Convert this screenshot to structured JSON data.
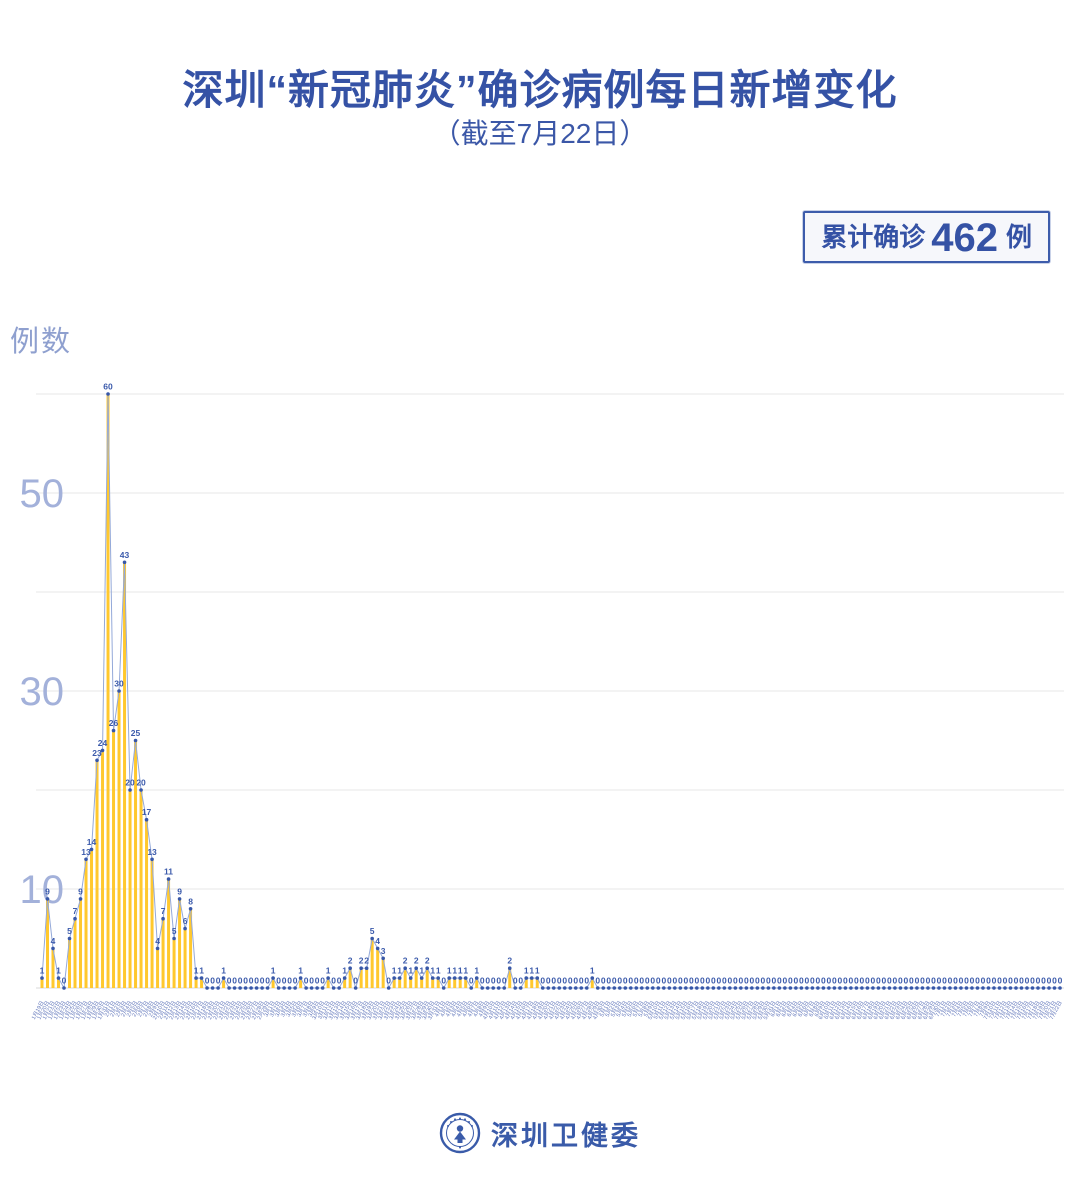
{
  "title": "深圳“新冠肺炎”确诊病例每日新增变化",
  "subtitle": "（截至7月22日）",
  "badge": {
    "prefix": "累计确诊",
    "value": "462",
    "suffix": "例"
  },
  "footer": {
    "org": "深圳卫健委",
    "logo": "shenzhen-health-commission-logo"
  },
  "chart_data": {
    "type": "bar",
    "overlay": "line-with-point-labels",
    "title": "深圳“新冠肺炎”确诊病例每日新增变化",
    "subtitle": "（截至7月22日）",
    "xlabel": "",
    "ylabel": "例数",
    "ylim": [
      0,
      62
    ],
    "y_ticks": [
      10,
      30,
      50
    ],
    "gridlines": [
      10,
      20,
      30,
      40,
      50,
      60
    ],
    "grid": true,
    "legend": "none",
    "cumulative_total": 462,
    "colors": {
      "bar": "#FFC82E",
      "line": "#94a9d9",
      "marker": "#3757a8",
      "point_label": "#3b5aab",
      "x_tick": "#6277bb",
      "y_tick": "#a3b1da",
      "gridline": "#e7e7e7",
      "baseline": "#d8d8d8"
    },
    "categories": [
      "1月19日",
      "1月20日",
      "1月21日",
      "1月22日",
      "1月23日",
      "1月24日",
      "1月25日",
      "1月26日",
      "1月27日",
      "1月28日",
      "1月29日",
      "1月30日",
      "1月31日",
      "2月1日",
      "2月2日",
      "2月3日",
      "2月4日",
      "2月5日",
      "2月6日",
      "2月7日",
      "2月8日",
      "2月9日",
      "2月10日",
      "2月11日",
      "2月12日",
      "2月13日",
      "2月14日",
      "2月15日",
      "2月16日",
      "2月17日",
      "2月18日",
      "2月19日",
      "2月20日",
      "2月21日",
      "2月22日",
      "2月23日",
      "2月24日",
      "2月25日",
      "2月26日",
      "2月27日",
      "2月28日",
      "2月29日",
      "3月1日",
      "3月2日",
      "3月3日",
      "3月4日",
      "3月5日",
      "3月6日",
      "3月7日",
      "3月8日",
      "3月9日",
      "3月10日",
      "3月11日",
      "3月12日",
      "3月13日",
      "3月14日",
      "3月15日",
      "3月16日",
      "3月17日",
      "3月18日",
      "3月19日",
      "3月20日",
      "3月21日",
      "3月22日",
      "3月23日",
      "3月24日",
      "3月25日",
      "3月26日",
      "3月27日",
      "3月28日",
      "3月29日",
      "3月30日",
      "3月31日",
      "4月1日",
      "4月2日",
      "4月3日",
      "4月4日",
      "4月5日",
      "4月6日",
      "4月7日",
      "4月8日",
      "4月9日",
      "4月10日",
      "4月11日",
      "4月12日",
      "4月13日",
      "4月14日",
      "4月15日",
      "4月16日",
      "4月17日",
      "4月18日",
      "4月19日",
      "4月20日",
      "4月21日",
      "4月22日",
      "4月23日",
      "4月24日",
      "4月25日",
      "4月26日",
      "4月27日",
      "4月28日",
      "4月29日",
      "4月30日",
      "5月1日",
      "5月2日",
      "5月3日",
      "5月4日",
      "5月5日",
      "5月6日",
      "5月7日",
      "5月8日",
      "5月9日",
      "5月10日",
      "5月11日",
      "5月12日",
      "5月13日",
      "5月14日",
      "5月15日",
      "5月16日",
      "5月17日",
      "5月18日",
      "5月19日",
      "5月20日",
      "5月21日",
      "5月22日",
      "5月23日",
      "5月24日",
      "5月25日",
      "5月26日",
      "5月27日",
      "5月28日",
      "5月29日",
      "5月30日",
      "5月31日",
      "6月1日",
      "6月2日",
      "6月3日",
      "6月4日",
      "6月5日",
      "6月6日",
      "6月7日",
      "6月8日",
      "6月9日",
      "6月10日",
      "6月11日",
      "6月12日",
      "6月13日",
      "6月14日",
      "6月15日",
      "6月16日",
      "6月17日",
      "6月18日",
      "6月19日",
      "6月20日",
      "6月21日",
      "6月22日",
      "6月23日",
      "6月24日",
      "6月25日",
      "6月26日",
      "6月27日",
      "6月28日",
      "6月29日",
      "6月30日",
      "7月1日",
      "7月2日",
      "7月3日",
      "7月4日",
      "7月5日",
      "7月6日",
      "7月7日",
      "7月8日",
      "7月9日",
      "7月10日",
      "7月11日",
      "7月12日",
      "7月13日",
      "7月14日",
      "7月15日",
      "7月16日",
      "7月17日",
      "7月18日",
      "7月19日",
      "7月20日",
      "7月21日",
      "7月22日"
    ],
    "values": [
      1,
      9,
      4,
      1,
      0,
      5,
      7,
      9,
      13,
      14,
      23,
      24,
      60,
      26,
      30,
      43,
      20,
      25,
      20,
      17,
      13,
      4,
      7,
      11,
      5,
      9,
      6,
      8,
      1,
      1,
      0,
      0,
      0,
      1,
      0,
      0,
      0,
      0,
      0,
      0,
      0,
      0,
      1,
      0,
      0,
      0,
      0,
      1,
      0,
      0,
      0,
      0,
      1,
      0,
      0,
      1,
      2,
      0,
      2,
      2,
      5,
      4,
      3,
      0,
      1,
      1,
      2,
      1,
      2,
      1,
      2,
      1,
      1,
      0,
      1,
      1,
      1,
      1,
      0,
      1,
      0,
      0,
      0,
      0,
      0,
      2,
      0,
      0,
      1,
      1,
      1,
      0,
      0,
      0,
      0,
      0,
      0,
      0,
      0,
      0,
      1,
      0,
      0,
      0,
      0,
      0,
      0,
      0,
      0,
      0,
      0,
      0,
      0,
      0,
      0,
      0,
      0,
      0,
      0,
      0,
      0,
      0,
      0,
      0,
      0,
      0,
      0,
      0,
      0,
      0,
      0,
      0,
      0,
      0,
      0,
      0,
      0,
      0,
      0,
      0,
      0,
      0,
      0,
      0,
      0,
      0,
      0,
      0,
      0,
      0,
      0,
      0,
      0,
      0,
      0,
      0,
      0,
      0,
      0,
      0,
      0,
      0,
      0,
      0,
      0,
      0,
      0,
      0,
      0,
      0,
      0,
      0,
      0,
      0,
      0,
      0,
      0,
      0,
      0,
      0,
      0,
      0,
      0,
      0,
      0,
      0
    ]
  }
}
